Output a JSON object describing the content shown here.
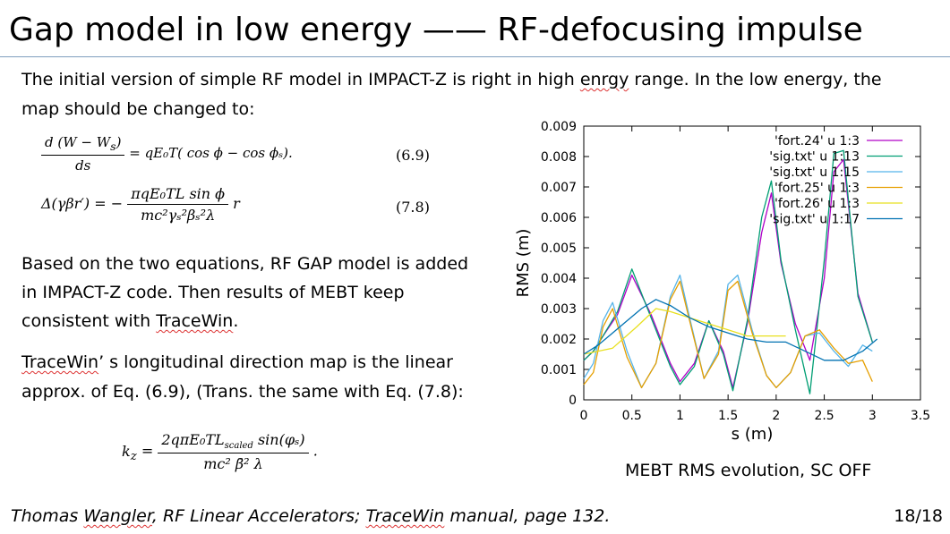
{
  "slide": {
    "title": "Gap model in low energy —— RF-defocusing impulse",
    "page": "18/18"
  },
  "body": {
    "intro_line1_a": "The initial version of simple RF model in IMPACT-Z is right in high ",
    "intro_line1_b": "enrgy",
    "intro_line1_c": " range. In the low energy, the",
    "intro_line2": "map should be changed to:",
    "p2_line1": "Based on the two equations, RF GAP model is added",
    "p2_line2": "in IMPACT-Z code. Then results of MEBT keep",
    "p2_line3_a": "consistent with ",
    "p2_line3_b": "TraceWin",
    "p2_line3_c": ".",
    "p3_line1_a": "TraceWin",
    "p3_line1_b": "’ s longitudinal direction map is the linear",
    "p3_line2": "approx. of Eq. (6.9), (Trans. the same with Eq. (7.8):"
  },
  "equations": {
    "eq69_num": "d (W − W",
    "eq69_num_sub": "s",
    "eq69_num_end": ")",
    "eq69_den": "ds",
    "eq69_rhs": "= qE₀T( cos ϕ − cos ϕₛ).",
    "eq69_label": "(6.9)",
    "eq78_lhs": "Δ(γβr′) = −",
    "eq78_num": "πqE₀TL sin ϕ",
    "eq78_den": "mc²γₛ²βₛ²λ",
    "eq78_rhs": "r",
    "eq78_label": "(7.8)",
    "eqk_lhs": "k",
    "eqk_lhs_sub": "z",
    "eqk_eq": "=",
    "eqk_num": "2qπE₀TL",
    "eqk_num_sub": "scaled",
    "eqk_num_end": " sin(φₛ)",
    "eqk_den": "mc² β̄² λ",
    "eqk_dot": "."
  },
  "footer": {
    "ref_a": "Thomas ",
    "ref_b": "Wangler",
    "ref_c": ", RF Linear Accelerators; ",
    "ref_d": "TraceWin",
    "ref_e": " manual, page 132."
  },
  "caption": "MEBT RMS evolution, SC OFF",
  "chart_data": {
    "type": "line",
    "xlabel": "s (m)",
    "ylabel": "RMS (m)",
    "xlim": [
      0,
      3.5
    ],
    "ylim": [
      0,
      0.009
    ],
    "xticks": [
      "0",
      "0.5",
      "1",
      "1.5",
      "2",
      "2.5",
      "3",
      "3.5"
    ],
    "yticks": [
      "0",
      "0.001",
      "0.002",
      "0.003",
      "0.004",
      "0.005",
      "0.006",
      "0.007",
      "0.008",
      "0.009"
    ],
    "grid": false,
    "legend_position": "top-right",
    "series": [
      {
        "name": "'fort.24' u 1:3",
        "color": "#b000c8",
        "x": [
          0,
          0.1,
          0.2,
          0.35,
          0.5,
          0.7,
          0.9,
          1.0,
          1.15,
          1.3,
          1.45,
          1.55,
          1.7,
          1.85,
          1.95,
          2.05,
          2.2,
          2.35,
          2.5,
          2.6,
          2.7,
          2.85,
          3.0
        ],
        "y": [
          0.0013,
          0.0016,
          0.0021,
          0.0028,
          0.0041,
          0.0028,
          0.0012,
          0.0006,
          0.0012,
          0.0026,
          0.0016,
          0.0004,
          0.0025,
          0.0055,
          0.0068,
          0.0045,
          0.0025,
          0.0013,
          0.004,
          0.0075,
          0.0079,
          0.0035,
          0.0019
        ]
      },
      {
        "name": "'sig.txt' u 1:13",
        "color": "#009e73",
        "x": [
          0,
          0.1,
          0.2,
          0.35,
          0.5,
          0.7,
          0.9,
          1.0,
          1.15,
          1.3,
          1.45,
          1.55,
          1.7,
          1.85,
          1.95,
          2.05,
          2.2,
          2.35,
          2.5,
          2.6,
          2.7,
          2.85,
          3.0
        ],
        "y": [
          0.0013,
          0.0016,
          0.0021,
          0.0029,
          0.0043,
          0.0027,
          0.0011,
          0.0005,
          0.0011,
          0.0026,
          0.0015,
          0.0003,
          0.0026,
          0.006,
          0.0072,
          0.0046,
          0.0023,
          0.0002,
          0.0046,
          0.0081,
          0.0082,
          0.0034,
          0.0019
        ]
      },
      {
        "name": "'sig.txt' u 1:15",
        "color": "#56b4e9",
        "x": [
          0,
          0.1,
          0.2,
          0.3,
          0.45,
          0.6,
          0.75,
          0.9,
          1.0,
          1.1,
          1.25,
          1.4,
          1.5,
          1.6,
          1.75,
          1.9,
          2.0,
          2.15,
          2.3,
          2.45,
          2.6,
          2.75,
          2.9,
          3.0
        ],
        "y": [
          0.0007,
          0.0012,
          0.0026,
          0.0032,
          0.0016,
          0.0004,
          0.0012,
          0.0034,
          0.0041,
          0.0027,
          0.0007,
          0.0016,
          0.0038,
          0.0041,
          0.0023,
          0.0008,
          0.0004,
          0.0009,
          0.0021,
          0.0022,
          0.0016,
          0.0011,
          0.0018,
          0.0016
        ]
      },
      {
        "name": "'fort.25' u 1:3",
        "color": "#e69f00",
        "x": [
          0,
          0.1,
          0.2,
          0.3,
          0.45,
          0.6,
          0.75,
          0.9,
          1.0,
          1.1,
          1.25,
          1.4,
          1.5,
          1.6,
          1.75,
          1.9,
          2.0,
          2.15,
          2.3,
          2.45,
          2.6,
          2.75,
          2.9,
          3.0
        ],
        "y": [
          0.0005,
          0.0009,
          0.0024,
          0.003,
          0.0014,
          0.0004,
          0.0012,
          0.0033,
          0.0039,
          0.0026,
          0.0007,
          0.0015,
          0.0036,
          0.0039,
          0.0022,
          0.0008,
          0.0004,
          0.0009,
          0.0021,
          0.0023,
          0.0017,
          0.0012,
          0.0013,
          0.0006
        ]
      },
      {
        "name": "'fort.26' u 1:3",
        "color": "#e8e020",
        "x": [
          0,
          0.3,
          0.55,
          0.75,
          0.9,
          1.1,
          1.3,
          1.5,
          1.7,
          1.9,
          2.1
        ],
        "y": [
          0.0015,
          0.0017,
          0.0024,
          0.003,
          0.0029,
          0.0027,
          0.0025,
          0.0023,
          0.0021,
          0.0021,
          0.0021
        ]
      },
      {
        "name": "'sig.txt' u 1:17",
        "color": "#0072b2",
        "x": [
          0,
          0.15,
          0.3,
          0.45,
          0.6,
          0.75,
          0.9,
          1.1,
          1.3,
          1.5,
          1.7,
          1.9,
          2.1,
          2.3,
          2.5,
          2.7,
          2.9,
          3.05
        ],
        "y": [
          0.0015,
          0.0018,
          0.0022,
          0.0026,
          0.003,
          0.0033,
          0.0031,
          0.0027,
          0.0024,
          0.0022,
          0.002,
          0.0019,
          0.0019,
          0.0016,
          0.0013,
          0.0013,
          0.0016,
          0.002
        ]
      }
    ]
  }
}
